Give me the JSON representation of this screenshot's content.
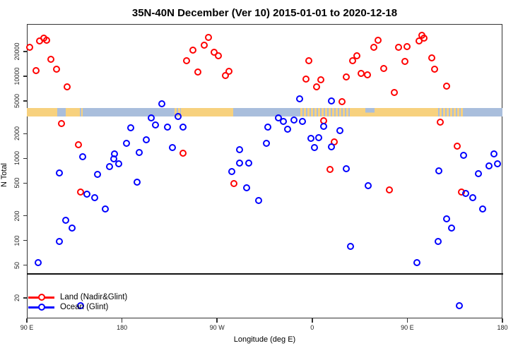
{
  "title": "35N-40N December (Ver 10)   2015-01-01 to 2020-12-18",
  "colors": {
    "land": "#FF0000",
    "ocean": "#0000FF",
    "strip_land": "#F7D17E",
    "strip_ocean": "#A9BEDC",
    "axis": "#333333"
  },
  "chart_data": {
    "type": "scatter",
    "title": "35N-40N December (Ver 10)   2015-01-01 to 2020-12-18",
    "xlabel": "Longitude (deg E)",
    "ylabel": "N Total",
    "x_axis": {
      "range_deg_e": [
        90,
        540
      ],
      "ticks": [
        {
          "lon": 90,
          "label": "90 E"
        },
        {
          "lon": 180,
          "label": "180"
        },
        {
          "lon": 270,
          "label": "90 W"
        },
        {
          "lon": 360,
          "label": "0"
        },
        {
          "lon": 450,
          "label": "90 E"
        },
        {
          "lon": 540,
          "label": "180"
        }
      ]
    },
    "y_axis": {
      "scale": "log",
      "range": [
        14,
        43000
      ],
      "ticks": [
        {
          "n": 20000,
          "label": "20000"
        },
        {
          "n": 10000,
          "label": "10000"
        },
        {
          "n": 5000,
          "label": "5000"
        },
        {
          "n": 2000,
          "label": "2000"
        },
        {
          "n": 1000,
          "label": "1000"
        },
        {
          "n": 500,
          "label": "500"
        },
        {
          "n": 200,
          "label": "200"
        },
        {
          "n": 100,
          "label": "100"
        },
        {
          "n": 50,
          "label": "50"
        },
        {
          "n": 20,
          "label": "20"
        }
      ]
    },
    "threshold_line_n": 39,
    "land_ocean_strip": {
      "n_center": 3650,
      "segments": [
        {
          "from": 90,
          "to": 119,
          "type": "land"
        },
        {
          "from": 119,
          "to": 127,
          "type": "ocean"
        },
        {
          "from": 127,
          "to": 138,
          "type": "land"
        },
        {
          "from": 138,
          "to": 143,
          "type": "mix"
        },
        {
          "from": 143,
          "to": 230,
          "type": "ocean"
        },
        {
          "from": 230,
          "to": 236,
          "type": "mix"
        },
        {
          "from": 236,
          "to": 285,
          "type": "land"
        },
        {
          "from": 285,
          "to": 349,
          "type": "ocean"
        },
        {
          "from": 349,
          "to": 397,
          "type": "mix"
        },
        {
          "from": 397,
          "to": 410,
          "type": "land"
        },
        {
          "from": 410,
          "to": 419,
          "type": "caspian"
        },
        {
          "from": 419,
          "to": 477,
          "type": "land"
        },
        {
          "from": 477,
          "to": 504,
          "type": "mix"
        },
        {
          "from": 504,
          "to": 540,
          "type": "ocean"
        }
      ]
    },
    "legend": {
      "position": "bottom-left"
    },
    "series": [
      {
        "name": "Land (Nadir&Glint)",
        "color_key": "land",
        "points": [
          {
            "lon": 93,
            "n": 22500
          },
          {
            "lon": 102,
            "n": 26900
          },
          {
            "lon": 106,
            "n": 29100
          },
          {
            "lon": 109,
            "n": 27500
          },
          {
            "lon": 99,
            "n": 11700
          },
          {
            "lon": 113,
            "n": 16100
          },
          {
            "lon": 118,
            "n": 12200
          },
          {
            "lon": 128,
            "n": 7430
          },
          {
            "lon": 123,
            "n": 2650
          },
          {
            "lon": 139,
            "n": 1470
          },
          {
            "lon": 141,
            "n": 389
          },
          {
            "lon": 238,
            "n": 1160
          },
          {
            "lon": 262,
            "n": 29700
          },
          {
            "lon": 258,
            "n": 23900
          },
          {
            "lon": 247,
            "n": 20800
          },
          {
            "lon": 267,
            "n": 19600
          },
          {
            "lon": 271,
            "n": 17800
          },
          {
            "lon": 241,
            "n": 15500
          },
          {
            "lon": 252,
            "n": 11300
          },
          {
            "lon": 281,
            "n": 11500
          },
          {
            "lon": 278,
            "n": 10200
          },
          {
            "lon": 286,
            "n": 493
          },
          {
            "lon": 357,
            "n": 15500
          },
          {
            "lon": 354,
            "n": 9240
          },
          {
            "lon": 368,
            "n": 9060
          },
          {
            "lon": 364,
            "n": 7430
          },
          {
            "lon": 388,
            "n": 4900
          },
          {
            "lon": 371,
            "n": 2870
          },
          {
            "lon": 377,
            "n": 733
          },
          {
            "lon": 381,
            "n": 1590
          },
          {
            "lon": 433,
            "n": 413
          },
          {
            "lon": 392,
            "n": 9800
          },
          {
            "lon": 402,
            "n": 17800
          },
          {
            "lon": 398,
            "n": 15500
          },
          {
            "lon": 406,
            "n": 10800
          },
          {
            "lon": 412,
            "n": 10400
          },
          {
            "lon": 418,
            "n": 22500
          },
          {
            "lon": 422,
            "n": 27500
          },
          {
            "lon": 428,
            "n": 12400
          },
          {
            "lon": 438,
            "n": 6340
          },
          {
            "lon": 442,
            "n": 22500
          },
          {
            "lon": 450,
            "n": 23000
          },
          {
            "lon": 448,
            "n": 15200
          },
          {
            "lon": 464,
            "n": 31500
          },
          {
            "lon": 461,
            "n": 26900
          },
          {
            "lon": 466,
            "n": 29100
          },
          {
            "lon": 473,
            "n": 16700
          },
          {
            "lon": 476,
            "n": 12200
          },
          {
            "lon": 487,
            "n": 7580
          },
          {
            "lon": 481,
            "n": 2760
          },
          {
            "lon": 497,
            "n": 1410
          },
          {
            "lon": 501,
            "n": 389
          }
        ]
      },
      {
        "name": "Ocean (Glint)",
        "color_key": "ocean",
        "points": [
          {
            "lon": 218,
            "n": 4620
          },
          {
            "lon": 208,
            "n": 3110
          },
          {
            "lon": 212,
            "n": 2550
          },
          {
            "lon": 233,
            "n": 3240
          },
          {
            "lon": 223,
            "n": 2400
          },
          {
            "lon": 238,
            "n": 2400
          },
          {
            "lon": 188,
            "n": 2360
          },
          {
            "lon": 184,
            "n": 1530
          },
          {
            "lon": 203,
            "n": 1680
          },
          {
            "lon": 196,
            "n": 1180
          },
          {
            "lon": 228,
            "n": 1350
          },
          {
            "lon": 143,
            "n": 1050
          },
          {
            "lon": 173,
            "n": 1130
          },
          {
            "lon": 172,
            "n": 986
          },
          {
            "lon": 168,
            "n": 793
          },
          {
            "lon": 177,
            "n": 859
          },
          {
            "lon": 121,
            "n": 664
          },
          {
            "lon": 157,
            "n": 638
          },
          {
            "lon": 194,
            "n": 513
          },
          {
            "lon": 147,
            "n": 367
          },
          {
            "lon": 154,
            "n": 332
          },
          {
            "lon": 164,
            "n": 242
          },
          {
            "lon": 127,
            "n": 176
          },
          {
            "lon": 133,
            "n": 142
          },
          {
            "lon": 121,
            "n": 97
          },
          {
            "lon": 101,
            "n": 54
          },
          {
            "lon": 141,
            "n": 16
          },
          {
            "lon": 348,
            "n": 5310
          },
          {
            "lon": 378,
            "n": 5000
          },
          {
            "lon": 328,
            "n": 3110
          },
          {
            "lon": 333,
            "n": 2820
          },
          {
            "lon": 343,
            "n": 2930
          },
          {
            "lon": 351,
            "n": 2820
          },
          {
            "lon": 318,
            "n": 2400
          },
          {
            "lon": 337,
            "n": 2270
          },
          {
            "lon": 371,
            "n": 2450
          },
          {
            "lon": 386,
            "n": 2180
          },
          {
            "lon": 317,
            "n": 1530
          },
          {
            "lon": 291,
            "n": 1280
          },
          {
            "lon": 359,
            "n": 1750
          },
          {
            "lon": 366,
            "n": 1790
          },
          {
            "lon": 362,
            "n": 1350
          },
          {
            "lon": 378,
            "n": 1380
          },
          {
            "lon": 291,
            "n": 876
          },
          {
            "lon": 300,
            "n": 876
          },
          {
            "lon": 284,
            "n": 691
          },
          {
            "lon": 298,
            "n": 438
          },
          {
            "lon": 309,
            "n": 307
          },
          {
            "lon": 503,
            "n": 1090
          },
          {
            "lon": 532,
            "n": 1130
          },
          {
            "lon": 527,
            "n": 809
          },
          {
            "lon": 535,
            "n": 859
          },
          {
            "lon": 480,
            "n": 705
          },
          {
            "lon": 517,
            "n": 651
          },
          {
            "lon": 392,
            "n": 748
          },
          {
            "lon": 413,
            "n": 465
          },
          {
            "lon": 505,
            "n": 374
          },
          {
            "lon": 512,
            "n": 332
          },
          {
            "lon": 521,
            "n": 242
          },
          {
            "lon": 487,
            "n": 183
          },
          {
            "lon": 492,
            "n": 142
          },
          {
            "lon": 479,
            "n": 97
          },
          {
            "lon": 396,
            "n": 85
          },
          {
            "lon": 459,
            "n": 54
          },
          {
            "lon": 499,
            "n": 16
          }
        ]
      }
    ]
  }
}
